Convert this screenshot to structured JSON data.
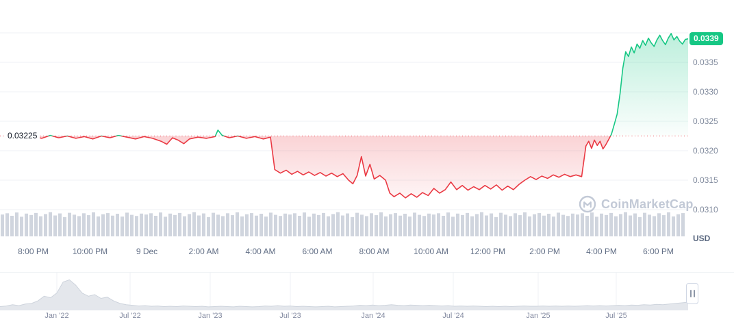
{
  "chart": {
    "price_badge": "0.0339",
    "reference_label": "0.03225",
    "currency_label": "USD",
    "watermark": "CoinMarketCap"
  },
  "colors": {
    "up": "#16c784",
    "down": "#ea3943",
    "grid": "#eff2f5",
    "axis_text": "#808a9d",
    "x_axis_text": "#616e85",
    "volume_bar": "#d0d5de",
    "mini_fill": "#e4e7ec",
    "mini_stroke": "#cdd3dc",
    "watermark": "#c2c9d6",
    "reference_line": "#ea3943"
  },
  "chart_data": {
    "type": "line",
    "currency": "USD",
    "reference_price": 0.03225,
    "last_price": 0.0339,
    "y_axis_range": [
      0.031,
      0.034
    ],
    "y_axis_ticks": [
      "0.0335",
      "0.0330",
      "0.0325",
      "0.0320",
      "0.0315",
      "0.0310"
    ],
    "x_axis_ticks": [
      "8:00 PM",
      "10:00 PM",
      "9 Dec",
      "2:00 AM",
      "4:00 AM",
      "6:00 AM",
      "8:00 AM",
      "10:00 AM",
      "12:00 PM",
      "2:00 PM",
      "4:00 PM",
      "6:00 PM"
    ],
    "price_series": {
      "x_unit": "hours_since_7pm_dec8",
      "points": [
        [
          0.1,
          0.03222
        ],
        [
          0.4,
          0.03225
        ],
        [
          0.7,
          0.0322
        ],
        [
          1.0,
          0.03224
        ],
        [
          1.3,
          0.03221
        ],
        [
          1.6,
          0.03226
        ],
        [
          1.9,
          0.03222
        ],
        [
          2.2,
          0.03225
        ],
        [
          2.5,
          0.03221
        ],
        [
          2.8,
          0.03224
        ],
        [
          3.1,
          0.0322
        ],
        [
          3.4,
          0.03225
        ],
        [
          3.7,
          0.03222
        ],
        [
          4.0,
          0.03226
        ],
        [
          4.3,
          0.03223
        ],
        [
          4.6,
          0.0322
        ],
        [
          4.9,
          0.03224
        ],
        [
          5.2,
          0.03221
        ],
        [
          5.5,
          0.03216
        ],
        [
          5.7,
          0.03211
        ],
        [
          5.9,
          0.03222
        ],
        [
          6.1,
          0.03218
        ],
        [
          6.3,
          0.03212
        ],
        [
          6.5,
          0.0322
        ],
        [
          6.8,
          0.03223
        ],
        [
          7.1,
          0.03221
        ],
        [
          7.4,
          0.03224
        ],
        [
          7.5,
          0.03235
        ],
        [
          7.65,
          0.03226
        ],
        [
          7.9,
          0.03222
        ],
        [
          8.2,
          0.03225
        ],
        [
          8.5,
          0.03221
        ],
        [
          8.8,
          0.03224
        ],
        [
          9.1,
          0.0322
        ],
        [
          9.35,
          0.03223
        ],
        [
          9.5,
          0.03168
        ],
        [
          9.7,
          0.03162
        ],
        [
          9.9,
          0.03167
        ],
        [
          10.1,
          0.0316
        ],
        [
          10.3,
          0.03165
        ],
        [
          10.5,
          0.03159
        ],
        [
          10.7,
          0.03164
        ],
        [
          10.9,
          0.03158
        ],
        [
          11.1,
          0.03163
        ],
        [
          11.3,
          0.03157
        ],
        [
          11.5,
          0.03162
        ],
        [
          11.7,
          0.03156
        ],
        [
          11.9,
          0.03161
        ],
        [
          12.1,
          0.0315
        ],
        [
          12.25,
          0.03144
        ],
        [
          12.4,
          0.03158
        ],
        [
          12.55,
          0.0319
        ],
        [
          12.7,
          0.03157
        ],
        [
          12.85,
          0.03177
        ],
        [
          13.0,
          0.03152
        ],
        [
          13.2,
          0.03158
        ],
        [
          13.4,
          0.0315
        ],
        [
          13.55,
          0.03128
        ],
        [
          13.7,
          0.03122
        ],
        [
          13.9,
          0.03128
        ],
        [
          14.1,
          0.0312
        ],
        [
          14.3,
          0.03127
        ],
        [
          14.5,
          0.03121
        ],
        [
          14.7,
          0.03129
        ],
        [
          14.9,
          0.03124
        ],
        [
          15.1,
          0.03136
        ],
        [
          15.3,
          0.03128
        ],
        [
          15.5,
          0.03134
        ],
        [
          15.7,
          0.03147
        ],
        [
          15.9,
          0.03134
        ],
        [
          16.1,
          0.03141
        ],
        [
          16.3,
          0.03133
        ],
        [
          16.5,
          0.03139
        ],
        [
          16.7,
          0.03134
        ],
        [
          16.9,
          0.03141
        ],
        [
          17.1,
          0.03135
        ],
        [
          17.3,
          0.03142
        ],
        [
          17.5,
          0.03133
        ],
        [
          17.7,
          0.0314
        ],
        [
          17.9,
          0.03134
        ],
        [
          18.1,
          0.03143
        ],
        [
          18.3,
          0.0315
        ],
        [
          18.5,
          0.03156
        ],
        [
          18.7,
          0.03151
        ],
        [
          18.9,
          0.03157
        ],
        [
          19.1,
          0.03153
        ],
        [
          19.3,
          0.03159
        ],
        [
          19.5,
          0.03155
        ],
        [
          19.7,
          0.0316
        ],
        [
          19.9,
          0.03156
        ],
        [
          20.1,
          0.03159
        ],
        [
          20.3,
          0.03156
        ],
        [
          20.45,
          0.03208
        ],
        [
          20.55,
          0.03216
        ],
        [
          20.65,
          0.03204
        ],
        [
          20.75,
          0.03218
        ],
        [
          20.85,
          0.03209
        ],
        [
          20.95,
          0.03216
        ],
        [
          21.05,
          0.03203
        ],
        [
          21.15,
          0.0321
        ],
        [
          21.25,
          0.03219
        ],
        [
          21.35,
          0.03228
        ],
        [
          21.45,
          0.03245
        ],
        [
          21.55,
          0.03262
        ],
        [
          21.65,
          0.03296
        ],
        [
          21.75,
          0.0334
        ],
        [
          21.85,
          0.03368
        ],
        [
          21.95,
          0.0336
        ],
        [
          22.05,
          0.03376
        ],
        [
          22.15,
          0.03366
        ],
        [
          22.25,
          0.03381
        ],
        [
          22.35,
          0.03374
        ],
        [
          22.45,
          0.03387
        ],
        [
          22.55,
          0.03379
        ],
        [
          22.65,
          0.03391
        ],
        [
          22.75,
          0.03383
        ],
        [
          22.85,
          0.03377
        ],
        [
          22.95,
          0.03388
        ],
        [
          23.05,
          0.03396
        ],
        [
          23.15,
          0.03387
        ],
        [
          23.25,
          0.0338
        ],
        [
          23.35,
          0.03391
        ],
        [
          23.45,
          0.03399
        ],
        [
          23.55,
          0.03388
        ],
        [
          23.65,
          0.03394
        ],
        [
          23.75,
          0.03386
        ],
        [
          23.85,
          0.03381
        ],
        [
          23.95,
          0.03389
        ],
        [
          24.05,
          0.0339
        ]
      ]
    },
    "volume_bars_relative": [
      0.82,
      0.9,
      0.74,
      0.95,
      0.68,
      0.88,
      0.79,
      0.92,
      0.71,
      0.85,
      0.97,
      0.76,
      0.89,
      0.66,
      0.93,
      0.81,
      0.72,
      0.9,
      0.78,
      0.96,
      0.7,
      0.84,
      0.91,
      0.75,
      0.87,
      0.69,
      0.94,
      0.8,
      0.73,
      0.88,
      0.82,
      0.9,
      0.74,
      0.95,
      0.68,
      0.88,
      0.79,
      0.92,
      0.71,
      0.85,
      0.97,
      0.76,
      0.89,
      0.66,
      0.93,
      0.81,
      0.72,
      0.9,
      0.78,
      0.96,
      0.7,
      0.84,
      0.91,
      0.75,
      0.87,
      0.69,
      0.94,
      0.8,
      0.73,
      0.88,
      0.82,
      0.9,
      0.74,
      0.95,
      0.68,
      0.88,
      0.79,
      0.92,
      0.71,
      0.85,
      0.97,
      0.76,
      0.89,
      0.66,
      0.93,
      0.81,
      0.72,
      0.9,
      0.78,
      0.96,
      0.7,
      0.84,
      0.91,
      0.75,
      0.87,
      0.69,
      0.94,
      0.8,
      0.73,
      0.88,
      0.82,
      0.9,
      0.74,
      0.95,
      0.68,
      0.88,
      0.79,
      0.92,
      0.71,
      0.85,
      0.97,
      0.76,
      0.89,
      0.66,
      0.93,
      0.81,
      0.72,
      0.9,
      0.78,
      0.96,
      0.7,
      0.84,
      0.91,
      0.75,
      0.87,
      0.69,
      0.94,
      0.8,
      0.73,
      0.88,
      0.82,
      0.9,
      0.74,
      0.95,
      0.68,
      0.88,
      0.79,
      0.92,
      0.71,
      0.85,
      0.97,
      0.76,
      0.89,
      0.66,
      0.93,
      0.81,
      0.72,
      0.9,
      0.78,
      0.96,
      0.7,
      0.84,
      0.91
    ],
    "mini_chart": {
      "x_labels": [
        "Jan '22",
        "Jul '22",
        "Jan '23",
        "Jul '23",
        "Jan '24",
        "Jul '24",
        "Jan '25",
        "Jul '25"
      ],
      "values": [
        0.12,
        0.14,
        0.18,
        0.15,
        0.2,
        0.22,
        0.3,
        0.45,
        0.4,
        0.55,
        0.9,
        0.97,
        0.8,
        0.55,
        0.45,
        0.5,
        0.38,
        0.42,
        0.3,
        0.22,
        0.18,
        0.16,
        0.14,
        0.15,
        0.13,
        0.14,
        0.12,
        0.13,
        0.12,
        0.14,
        0.13,
        0.12,
        0.13,
        0.11,
        0.12,
        0.13,
        0.12,
        0.11,
        0.13,
        0.12,
        0.11,
        0.12,
        0.14,
        0.13,
        0.15,
        0.13,
        0.14,
        0.12,
        0.13,
        0.12,
        0.11,
        0.12,
        0.13,
        0.11,
        0.12,
        0.13,
        0.14,
        0.16,
        0.15,
        0.17,
        0.15,
        0.16,
        0.18,
        0.16,
        0.15,
        0.17,
        0.16,
        0.15,
        0.16,
        0.15,
        0.14,
        0.15,
        0.13,
        0.14,
        0.13,
        0.14,
        0.13,
        0.12,
        0.13,
        0.12,
        0.13,
        0.12,
        0.13,
        0.14,
        0.13,
        0.13,
        0.14,
        0.13,
        0.14,
        0.13,
        0.14,
        0.13,
        0.14,
        0.15,
        0.14,
        0.15,
        0.14,
        0.15,
        0.16,
        0.15,
        0.17,
        0.16,
        0.18,
        0.17,
        0.19,
        0.18,
        0.2,
        0.22,
        0.24,
        0.26
      ]
    }
  }
}
